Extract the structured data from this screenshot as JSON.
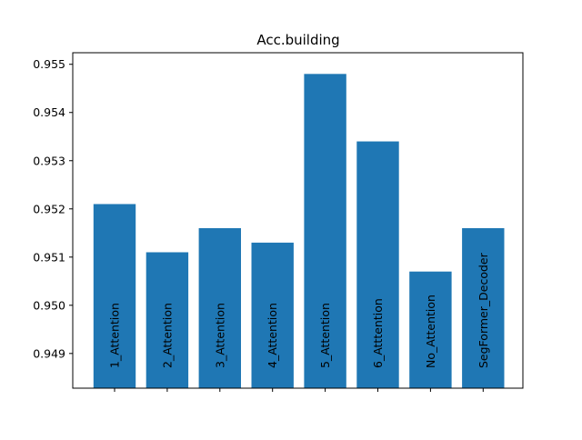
{
  "chart_data": {
    "type": "bar",
    "title": "Acc.building",
    "xlabel": "",
    "ylabel": "",
    "categories": [
      "1_Attention",
      "2_Attention",
      "3_Attention",
      "4_Attention",
      "5_Attention",
      "6_Atttention",
      "No_Attention",
      "SegFormer_Decoder"
    ],
    "values": [
      0.9521,
      0.9511,
      0.9516,
      0.9513,
      0.9548,
      0.9534,
      0.9507,
      0.9516
    ],
    "ylim": [
      0.94828,
      0.95524
    ],
    "yticks": [
      0.949,
      0.95,
      0.951,
      0.952,
      0.953,
      0.954,
      0.955
    ],
    "ytick_labels": [
      "0.949",
      "0.950",
      "0.951",
      "0.952",
      "0.953",
      "0.954",
      "0.955"
    ],
    "category_labels_inside_bars": true,
    "grid": false,
    "bar_color": "#1f77b4",
    "label_color": "#000000"
  }
}
